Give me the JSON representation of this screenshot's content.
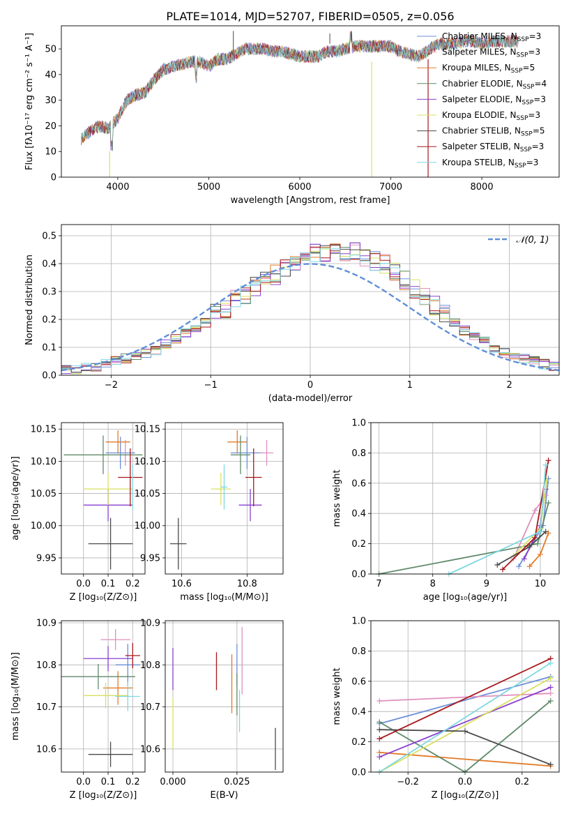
{
  "figure_title": "PLATE=1014, MJD=52707, FIBERID=0505, z=0.056",
  "colors": [
    "#6a8fd8",
    "#e08fbe",
    "#e07b2a",
    "#5f8a6a",
    "#8a3fd0",
    "#d8e060",
    "#4a4a4a",
    "#a8161c",
    "#7fd8e0"
  ],
  "chart_data": [
    {
      "type": "line",
      "title": "PLATE=1014, MJD=52707, FIBERID=0505, z=0.056",
      "xlabel": "wavelength [Angstrom, rest frame]",
      "ylabel": "Flux [fλ10⁻¹⁷ erg cm⁻² s⁻¹ A⁻¹]",
      "xlim": [
        3380,
        8850
      ],
      "ylim": [
        0,
        59
      ],
      "xticks": [
        4000,
        5000,
        6000,
        7000,
        8000
      ],
      "yticks": [
        0,
        10,
        20,
        30,
        40,
        50
      ],
      "legend_loc": "upper right",
      "x": [
        3600,
        3700,
        3800,
        3900,
        4000,
        4100,
        4200,
        4300,
        4400,
        4500,
        4600,
        4700,
        4800,
        4900,
        5000,
        5100,
        5200,
        5300,
        5400,
        5500,
        5600,
        5700,
        5800,
        5900,
        6000,
        6100,
        6200,
        6300,
        6400,
        6500,
        6600,
        6700,
        6800,
        6900,
        7000,
        7100,
        7200,
        7300,
        7400,
        7500,
        7600,
        7700,
        7800,
        7900,
        8000,
        8100,
        8200,
        8300,
        8400
      ],
      "y_median": [
        15,
        18,
        20,
        19,
        23,
        30,
        32,
        33,
        38,
        42,
        43,
        44,
        45,
        45,
        43,
        46,
        46,
        48,
        50,
        50,
        50,
        49,
        49,
        48,
        47,
        47,
        47,
        49,
        49,
        50,
        51,
        51,
        51,
        51,
        51,
        49,
        48,
        47,
        49,
        52,
        52,
        52,
        53,
        53,
        52,
        53,
        53,
        53,
        53
      ],
      "series": [
        {
          "name": "Chabrier MILES, N",
          "sub": "SSP",
          "suffix": "=3"
        },
        {
          "name": "Salpeter MILES, N",
          "sub": "SSP",
          "suffix": "=3"
        },
        {
          "name": "Kroupa MILES, N",
          "sub": "SSP",
          "suffix": "=5"
        },
        {
          "name": "Chabrier ELODIE, N",
          "sub": "SSP",
          "suffix": "=4"
        },
        {
          "name": "Salpeter ELODIE, N",
          "sub": "SSP",
          "suffix": "=3"
        },
        {
          "name": "Kroupa ELODIE, N",
          "sub": "SSP",
          "suffix": "=3"
        },
        {
          "name": "Chabrier STELIB, N",
          "sub": "SSP",
          "suffix": "=5"
        },
        {
          "name": "Salpeter STELIB, N",
          "sub": "SSP",
          "suffix": "=3"
        },
        {
          "name": "Kroupa STELIB, N",
          "sub": "SSP",
          "suffix": "=3"
        }
      ]
    },
    {
      "type": "histogram",
      "xlabel": "(data-model)/error",
      "ylabel": "Normed distribution",
      "xlim": [
        -2.5,
        2.5
      ],
      "ylim": [
        0,
        0.54
      ],
      "xticks": [
        -2,
        -1,
        0,
        1,
        2
      ],
      "yticks": [
        0.0,
        0.1,
        0.2,
        0.3,
        0.4,
        0.5
      ],
      "legend_label": "𝒩(0, 1)",
      "legend_loc": "upper right",
      "bin_width": 0.1,
      "bin_start": -2.5,
      "values": [
        0.02,
        0.02,
        0.03,
        0.03,
        0.04,
        0.05,
        0.06,
        0.07,
        0.08,
        0.09,
        0.11,
        0.13,
        0.15,
        0.17,
        0.19,
        0.22,
        0.24,
        0.27,
        0.29,
        0.32,
        0.34,
        0.36,
        0.38,
        0.4,
        0.42,
        0.44,
        0.43,
        0.44,
        0.43,
        0.44,
        0.42,
        0.41,
        0.4,
        0.37,
        0.34,
        0.31,
        0.28,
        0.25,
        0.22,
        0.19,
        0.16,
        0.14,
        0.12,
        0.1,
        0.08,
        0.07,
        0.06,
        0.05,
        0.04,
        0.03
      ]
    },
    {
      "type": "scatter",
      "xlabel": "Z [log₁₀(Z/Z⊙)]",
      "ylabel": "age  [log₁₀(age/yr)]",
      "xlim": [
        -0.09,
        0.25
      ],
      "ylim": [
        9.925,
        10.16
      ],
      "xticks": [
        0.0,
        0.1,
        0.2
      ],
      "yticks": [
        9.95,
        10.0,
        10.05,
        10.1,
        10.15
      ],
      "points": [
        {
          "x": 0.15,
          "y": 10.113,
          "xerr": 0.06,
          "yerr": 0.025
        },
        {
          "x": 0.17,
          "y": 10.113,
          "xerr": 0.0,
          "yerr": 0.02
        },
        {
          "x": 0.14,
          "y": 10.13,
          "xerr": 0.05,
          "yerr": 0.018
        },
        {
          "x": 0.08,
          "y": 10.11,
          "xerr": 0.16,
          "yerr": 0.03
        },
        {
          "x": 0.1,
          "y": 10.032,
          "xerr": 0.1,
          "yerr": 0.025
        },
        {
          "x": 0.1,
          "y": 10.057,
          "xerr": 0.1,
          "yerr": 0.025
        },
        {
          "x": 0.11,
          "y": 9.972,
          "xerr": 0.09,
          "yerr": 0.04
        },
        {
          "x": 0.19,
          "y": 10.075,
          "xerr": 0.05,
          "yerr": 0.045
        },
        {
          "x": 0.2,
          "y": 10.06,
          "xerr": 0.0,
          "yerr": 0.035
        }
      ]
    },
    {
      "type": "scatter",
      "xlabel": "mass [log₁₀(M/M⊙)]",
      "xlim": [
        10.55,
        10.91
      ],
      "ylim": [
        9.925,
        10.16
      ],
      "xticks": [
        10.6,
        10.8
      ],
      "yticks": [
        9.95,
        10.0,
        10.05,
        10.1,
        10.15
      ],
      "points": [
        {
          "x": 10.8,
          "y": 10.113,
          "xerr": 0.05,
          "yerr": 0.025
        },
        {
          "x": 10.86,
          "y": 10.113,
          "xerr": 0.02,
          "yerr": 0.02
        },
        {
          "x": 10.77,
          "y": 10.13,
          "xerr": 0.03,
          "yerr": 0.018
        },
        {
          "x": 10.78,
          "y": 10.11,
          "xerr": 0.03,
          "yerr": 0.03
        },
        {
          "x": 10.81,
          "y": 10.032,
          "xerr": 0.035,
          "yerr": 0.025
        },
        {
          "x": 10.72,
          "y": 10.057,
          "xerr": 0.03,
          "yerr": 0.025
        },
        {
          "x": 10.59,
          "y": 9.972,
          "xerr": 0.025,
          "yerr": 0.04
        },
        {
          "x": 10.82,
          "y": 10.075,
          "xerr": 0.025,
          "yerr": 0.045
        },
        {
          "x": 10.73,
          "y": 10.06,
          "xerr": 0.01,
          "yerr": 0.035
        }
      ]
    },
    {
      "type": "line",
      "xlabel": "age  [log₁₀(age/yr)]",
      "ylabel": "mass weight",
      "xlim": [
        6.85,
        10.35
      ],
      "ylim": [
        0,
        1.0
      ],
      "xticks": [
        7,
        8,
        9,
        10
      ],
      "yticks": [
        0.0,
        0.2,
        0.4,
        0.6,
        0.8,
        1.0
      ],
      "series": [
        {
          "x": [
            9.6,
            10.05,
            10.15
          ],
          "y": [
            0.05,
            0.32,
            0.63
          ]
        },
        {
          "x": [
            9.5,
            9.9,
            10.1
          ],
          "y": [
            0.1,
            0.42,
            0.52
          ]
        },
        {
          "x": [
            9.8,
            10.0,
            10.15
          ],
          "y": [
            0.05,
            0.13,
            0.27
          ]
        },
        {
          "x": [
            7.0,
            9.95,
            10.15
          ],
          "y": [
            0.0,
            0.2,
            0.47
          ]
        },
        {
          "x": [
            9.7,
            10.0,
            10.1
          ],
          "y": [
            0.1,
            0.32,
            0.56
          ]
        },
        {
          "x": [
            9.5,
            10.0,
            10.12
          ],
          "y": [
            0.12,
            0.3,
            0.62
          ]
        },
        {
          "x": [
            9.2,
            9.8,
            10.1
          ],
          "y": [
            0.06,
            0.18,
            0.28
          ]
        },
        {
          "x": [
            9.3,
            9.9,
            10.15
          ],
          "y": [
            0.03,
            0.24,
            0.75
          ]
        },
        {
          "x": [
            8.3,
            10.0,
            10.1
          ],
          "y": [
            0.0,
            0.28,
            0.72
          ]
        }
      ]
    },
    {
      "type": "scatter",
      "xlabel": "Z [log₁₀(Z/Z⊙)]",
      "ylabel": "mass [log₁₀(M/M⊙)]",
      "xlim": [
        -0.09,
        0.25
      ],
      "ylim": [
        10.545,
        10.905
      ],
      "xticks": [
        0.0,
        0.1,
        0.2
      ],
      "yticks": [
        10.6,
        10.7,
        10.8,
        10.9
      ],
      "points": [
        {
          "x": 0.18,
          "y": 10.8,
          "xerr": 0.05,
          "yerr": 0.05
        },
        {
          "x": 0.13,
          "y": 10.86,
          "xerr": 0.06,
          "yerr": 0.025
        },
        {
          "x": 0.14,
          "y": 10.745,
          "xerr": 0.06,
          "yerr": 0.04
        },
        {
          "x": 0.06,
          "y": 10.772,
          "xerr": 0.15,
          "yerr": 0.03
        },
        {
          "x": 0.1,
          "y": 10.815,
          "xerr": 0.1,
          "yerr": 0.03
        },
        {
          "x": 0.09,
          "y": 10.727,
          "xerr": 0.09,
          "yerr": 0.03
        },
        {
          "x": 0.11,
          "y": 10.587,
          "xerr": 0.09,
          "yerr": 0.03
        },
        {
          "x": 0.2,
          "y": 10.822,
          "xerr": 0.03,
          "yerr": 0.03
        },
        {
          "x": 0.18,
          "y": 10.725,
          "xerr": 0.05,
          "yerr": 0.035
        }
      ]
    },
    {
      "type": "scatter",
      "xlabel": "E(B-V)",
      "xlim": [
        -0.003,
        0.043
      ],
      "ylim": [
        10.545,
        10.905
      ],
      "xticks": [
        0.0,
        0.025
      ],
      "yticks": [
        10.6,
        10.7,
        10.8,
        10.9
      ],
      "points": [
        {
          "x": 0.025,
          "y": 10.8,
          "xerr": 0.0,
          "yerr": 0.05
        },
        {
          "x": 0.027,
          "y": 10.81,
          "xerr": 0.0,
          "yerr": 0.08
        },
        {
          "x": 0.023,
          "y": 10.755,
          "xerr": 0.0,
          "yerr": 0.07
        },
        {
          "x": 0.025,
          "y": 10.73,
          "xerr": 0.0,
          "yerr": 0.05
        },
        {
          "x": 0.0,
          "y": 10.79,
          "xerr": 0.0,
          "yerr": 0.05
        },
        {
          "x": 0.0,
          "y": 10.66,
          "xerr": 0.0,
          "yerr": 0.06
        },
        {
          "x": 0.04,
          "y": 10.6,
          "xerr": 0.0,
          "yerr": 0.05
        },
        {
          "x": 0.017,
          "y": 10.785,
          "xerr": 0.0,
          "yerr": 0.045
        },
        {
          "x": 0.026,
          "y": 10.69,
          "xerr": 0.0,
          "yerr": 0.05
        }
      ]
    },
    {
      "type": "line",
      "xlabel": "Z [log₁₀(Z/Z⊙)]",
      "ylabel": "mass weight",
      "xlim": [
        -0.33,
        0.33
      ],
      "ylim": [
        0,
        1.0
      ],
      "xticks": [
        -0.2,
        0.0,
        0.2
      ],
      "yticks": [
        0.0,
        0.2,
        0.4,
        0.6,
        0.8,
        1.0
      ],
      "series": [
        {
          "x": [
            -0.3,
            0.3
          ],
          "y": [
            0.32,
            0.63
          ]
        },
        {
          "x": [
            -0.3,
            0.3
          ],
          "y": [
            0.47,
            0.52
          ]
        },
        {
          "x": [
            -0.3,
            0.3
          ],
          "y": [
            0.13,
            0.04
          ]
        },
        {
          "x": [
            -0.3,
            0.0,
            0.3
          ],
          "y": [
            0.33,
            0.0,
            0.47
          ]
        },
        {
          "x": [
            -0.3,
            0.3
          ],
          "y": [
            0.1,
            0.56
          ]
        },
        {
          "x": [
            -0.3,
            0.3
          ],
          "y": [
            0.0,
            0.62
          ]
        },
        {
          "x": [
            -0.3,
            0.0,
            0.3
          ],
          "y": [
            0.28,
            0.27,
            0.05
          ]
        },
        {
          "x": [
            -0.3,
            0.3
          ],
          "y": [
            0.22,
            0.75
          ]
        },
        {
          "x": [
            -0.3,
            0.3
          ],
          "y": [
            0.0,
            0.72
          ]
        }
      ]
    }
  ]
}
